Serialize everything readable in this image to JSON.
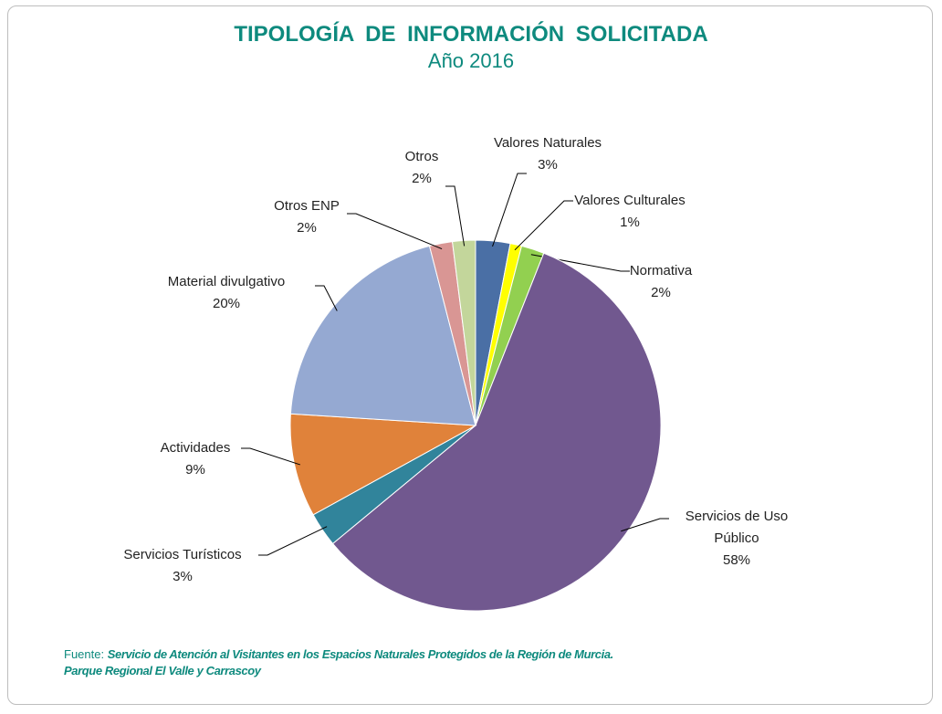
{
  "chart_data": {
    "type": "pie",
    "title": "TIPOLOGÍA DE INFORMACIÓN SOLICITADA",
    "subtitle": "Año 2016",
    "categories": [
      "Valores Naturales",
      "Valores Culturales",
      "Normativa",
      "Servicios de Uso Público",
      "Servicios Turísticos",
      "Actividades",
      "Material divulgativo",
      "Otros ENP",
      "Otros"
    ],
    "values": [
      3,
      1,
      2,
      58,
      3,
      9,
      20,
      2,
      2
    ],
    "value_labels": [
      "3%",
      "1%",
      "2%",
      "58%",
      "3%",
      "9%",
      "20%",
      "2%",
      "2%"
    ],
    "colors": [
      "#4a6fa5",
      "#ffff00",
      "#92d050",
      "#71588f",
      "#31849b",
      "#e0823a",
      "#95a9d2",
      "#d99694",
      "#c3d69b"
    ],
    "source_label": "Fuente:",
    "source": [
      "Servicio de Atención al Visitantes en los Espacios Naturales Protegidos de la Región de Murcia.",
      "Parque Regional El Valle y Carrascoy"
    ]
  }
}
